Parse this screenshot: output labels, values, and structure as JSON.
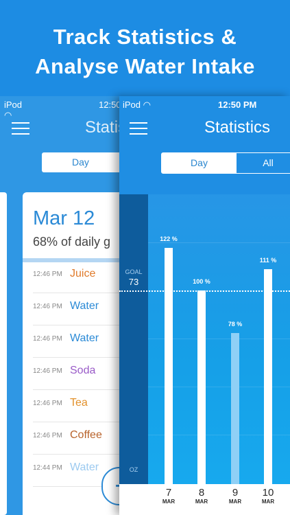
{
  "banner": {
    "line1": "Track Statistics &",
    "line2": "Analyse Water Intake"
  },
  "back_screen": {
    "status": {
      "carrier": "iPod",
      "time": "12:50"
    },
    "title": "Statistics",
    "segment_day": "Day",
    "card": {
      "date": "Mar 12",
      "percent_text": "68% of daily g",
      "entries": [
        {
          "time": "12:46 PM",
          "drink": "Juice",
          "color": "#e07a2a"
        },
        {
          "time": "12:46 PM",
          "drink": "Water",
          "color": "#2b8ad6"
        },
        {
          "time": "12:46 PM",
          "drink": "Water",
          "color": "#2b8ad6"
        },
        {
          "time": "12:46 PM",
          "drink": "Soda",
          "color": "#9a5cc8"
        },
        {
          "time": "12:46 PM",
          "drink": "Tea",
          "color": "#e2902a"
        },
        {
          "time": "12:46 PM",
          "drink": "Coffee",
          "color": "#b8632b"
        },
        {
          "time": "12:44 PM",
          "drink": "Water",
          "color": "#9ccaf0"
        }
      ]
    }
  },
  "front_screen": {
    "status": {
      "carrier": "iPod",
      "time": "12:50 PM"
    },
    "title": "Statistics",
    "segments": {
      "day": "Day",
      "all": "All"
    },
    "axis": {
      "goal_label": "GOAL",
      "goal_value": "73",
      "unit": "OZ"
    }
  },
  "chart_data": {
    "type": "bar",
    "categories": [
      "7",
      "8",
      "9",
      "10"
    ],
    "month": "MAR",
    "values": [
      122,
      100,
      78,
      111
    ],
    "value_labels": [
      "122 %",
      "100 %",
      "78 %",
      "111 %"
    ],
    "goal": 73
  },
  "colors": {
    "accent": "#1d8ce3",
    "axis_bar": "#0e5c9c",
    "bar": "#ffffff",
    "bar_current": "#8fd0f6"
  }
}
